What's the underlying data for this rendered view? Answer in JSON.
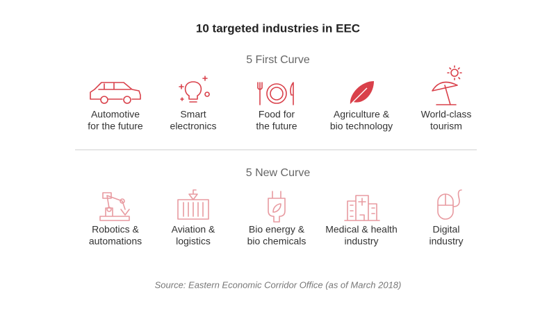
{
  "title": "10 targeted industries in EEC",
  "sections": [
    {
      "heading": "5 First Curve",
      "items": [
        {
          "lines": [
            "Automotive",
            "for the future"
          ]
        },
        {
          "lines": [
            "Smart",
            "electronics"
          ]
        },
        {
          "lines": [
            "Food for",
            "the future"
          ]
        },
        {
          "lines": [
            "Agriculture &",
            "bio technology"
          ]
        },
        {
          "lines": [
            "World-class",
            "tourism"
          ]
        }
      ]
    },
    {
      "heading": "5 New Curve",
      "items": [
        {
          "lines": [
            "Robotics &",
            "automations"
          ]
        },
        {
          "lines": [
            "Aviation &",
            "logistics"
          ]
        },
        {
          "lines": [
            "Bio energy &",
            "bio chemicals"
          ]
        },
        {
          "lines": [
            "Medical & health",
            "industry"
          ]
        },
        {
          "lines": [
            "Digital",
            "industry"
          ]
        }
      ]
    }
  ],
  "source": "Source: Eastern Economic Corridor Office (as of March 2018)"
}
